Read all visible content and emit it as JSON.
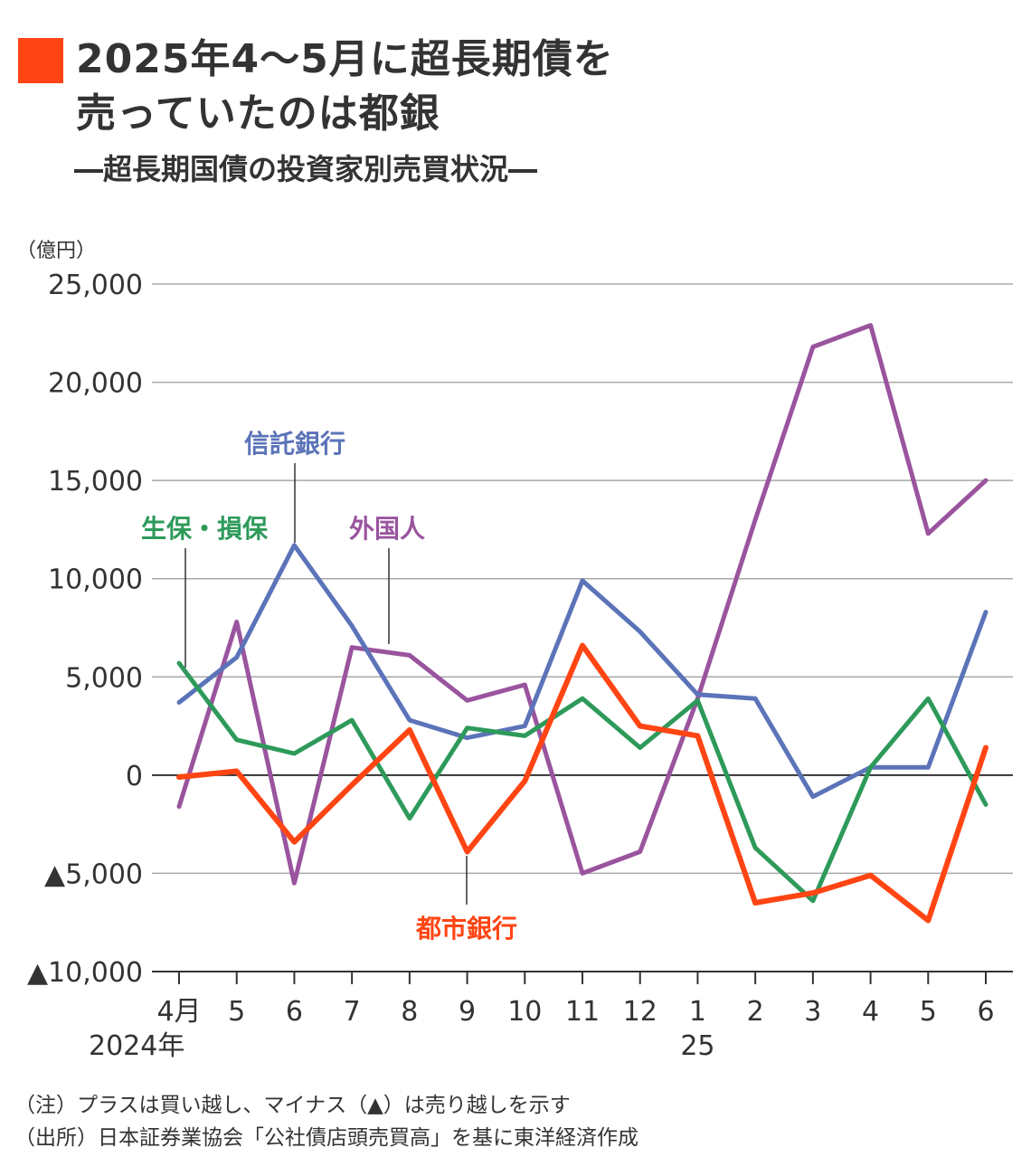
{
  "header": {
    "title_line1": "2025年4～5月に超長期債を",
    "title_line2": "売っていたのは都銀",
    "subtitle": "―超長期国債の投資家別売買状況―",
    "accent_color": "#ff4513"
  },
  "notes": {
    "note": "（注）プラスは買い越し、マイナス（▲）は売り越しを示す",
    "source": "（出所）日本証券業協会「公社債店頭売買高」を基に東洋経済作成"
  },
  "chart_data": {
    "type": "line",
    "unit_label": "（億円）",
    "categories": [
      "4月",
      "5",
      "6",
      "7",
      "8",
      "9",
      "10",
      "11",
      "12",
      "1",
      "2",
      "3",
      "4",
      "5",
      "6"
    ],
    "year_labels": [
      {
        "index": 0,
        "label": "2024年"
      },
      {
        "index": 9,
        "label": "25"
      }
    ],
    "ylim": [
      -10000,
      25000
    ],
    "yticks": [
      {
        "value": 25000,
        "label": "25,000"
      },
      {
        "value": 20000,
        "label": "20,000"
      },
      {
        "value": 15000,
        "label": "15,000"
      },
      {
        "value": 10000,
        "label": "10,000"
      },
      {
        "value": 5000,
        "label": "5,000"
      },
      {
        "value": 0,
        "label": "0"
      },
      {
        "value": -5000,
        "label": "▲5,000"
      },
      {
        "value": -10000,
        "label": "▲10,000"
      }
    ],
    "grid": true,
    "series": [
      {
        "name": "信託銀行",
        "color": "#5b73b8",
        "values": [
          3700,
          6000,
          11700,
          7600,
          2800,
          1900,
          2500,
          9900,
          7300,
          4100,
          3900,
          -1100,
          400,
          400,
          8300
        ]
      },
      {
        "name": "生保・損保",
        "color": "#2e9a5a",
        "values": [
          5700,
          1800,
          1100,
          2800,
          -2200,
          2400,
          2000,
          3900,
          1400,
          3800,
          -3700,
          -6400,
          400,
          3900,
          -1500
        ]
      },
      {
        "name": "外国人",
        "color": "#9a549e",
        "values": [
          -1600,
          7800,
          -5500,
          6500,
          6100,
          3800,
          4600,
          -5000,
          -3900,
          3900,
          13000,
          21800,
          22900,
          12300,
          15000
        ]
      },
      {
        "name": "都市銀行",
        "color": "#ff4513",
        "values": [
          -100,
          200,
          -3400,
          -500,
          2300,
          -3900,
          -300,
          6600,
          2500,
          2000,
          -6500,
          -6000,
          -5100,
          -7400,
          1400
        ]
      }
    ]
  }
}
